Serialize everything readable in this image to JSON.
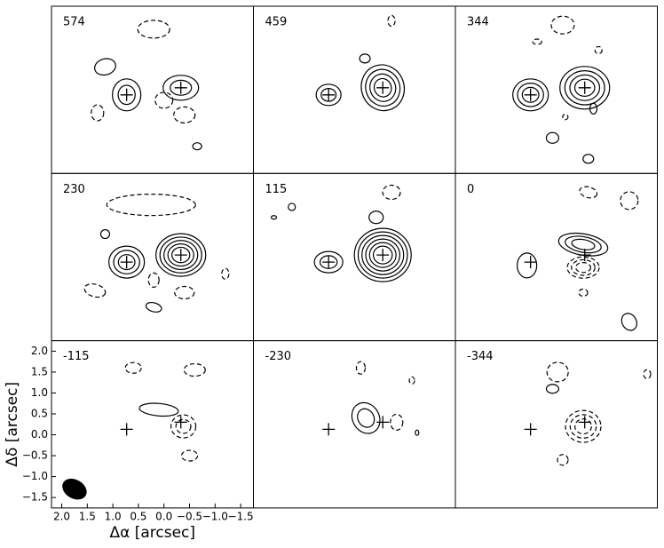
{
  "chart_data": {
    "type": "channel-map",
    "x_label": "Δα [arcsec]",
    "y_label": "Δδ [arcsec]",
    "xlim": [
      2.2,
      -1.75
    ],
    "ylim": [
      -1.75,
      2.25
    ],
    "xticks": [
      {
        "value": 2.0,
        "label": "2.0"
      },
      {
        "value": 1.5,
        "label": "1.5"
      },
      {
        "value": 1.0,
        "label": "1.0"
      },
      {
        "value": 0.5,
        "label": "0.5"
      },
      {
        "value": 0.0,
        "label": "0.0"
      },
      {
        "value": -0.5,
        "label": "−0.5"
      },
      {
        "value": -1.0,
        "label": "−1.0"
      },
      {
        "value": -1.5,
        "label": "−1.5"
      }
    ],
    "yticks": [
      {
        "value": 2.0,
        "label": "2.0"
      },
      {
        "value": 1.5,
        "label": "1.5"
      },
      {
        "value": 1.0,
        "label": "1.0"
      },
      {
        "value": 0.5,
        "label": "0.5"
      },
      {
        "value": 0.0,
        "label": "0.0"
      },
      {
        "value": -0.5,
        "label": "−0.5"
      },
      {
        "value": -1.0,
        "label": "−1.0"
      },
      {
        "value": -1.5,
        "label": "−1.5"
      }
    ],
    "panels": [
      "574",
      "459",
      "344",
      "230",
      "115",
      "0",
      "-115",
      "-230",
      "-344"
    ],
    "markers": {
      "x": [
        0.73,
        -0.33
      ],
      "y": [
        0.13,
        0.3
      ]
    }
  }
}
